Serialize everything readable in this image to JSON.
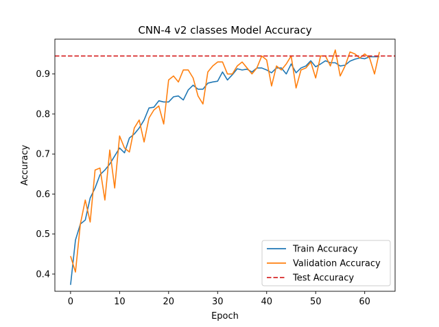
{
  "chart_data": {
    "type": "line",
    "title": "CNN-4 v2 classes Model Accuracy",
    "xlabel": "Epoch",
    "ylabel": "Accuracy",
    "xlim": [
      -3.2,
      66.2
    ],
    "ylim": [
      0.357,
      0.987
    ],
    "xticks": [
      0,
      10,
      20,
      30,
      40,
      50,
      60
    ],
    "yticks": [
      0.4,
      0.5,
      0.6,
      0.7,
      0.8,
      0.9
    ],
    "ytick_labels": [
      "0.4",
      "0.5",
      "0.6",
      "0.7",
      "0.8",
      "0.9"
    ],
    "legend_position": "lower-right",
    "series": [
      {
        "name": "Train Accuracy",
        "color": "#1f77b4",
        "style": "solid",
        "x": [
          0,
          1,
          2,
          3,
          4,
          5,
          6,
          7,
          8,
          9,
          10,
          11,
          12,
          13,
          14,
          15,
          16,
          17,
          18,
          19,
          20,
          21,
          22,
          23,
          24,
          25,
          26,
          27,
          28,
          29,
          30,
          31,
          32,
          33,
          34,
          35,
          36,
          37,
          38,
          39,
          40,
          41,
          42,
          43,
          44,
          45,
          46,
          47,
          48,
          49,
          50,
          51,
          52,
          53,
          54,
          55,
          56,
          57,
          58,
          59,
          60,
          61,
          62,
          63
        ],
        "values": [
          0.373,
          0.485,
          0.525,
          0.535,
          0.59,
          0.615,
          0.648,
          0.66,
          0.675,
          0.695,
          0.715,
          0.703,
          0.74,
          0.75,
          0.765,
          0.785,
          0.815,
          0.817,
          0.833,
          0.83,
          0.83,
          0.843,
          0.845,
          0.835,
          0.86,
          0.872,
          0.862,
          0.862,
          0.877,
          0.88,
          0.882,
          0.905,
          0.885,
          0.898,
          0.913,
          0.91,
          0.912,
          0.905,
          0.915,
          0.915,
          0.91,
          0.903,
          0.915,
          0.915,
          0.9,
          0.925,
          0.903,
          0.915,
          0.92,
          0.933,
          0.918,
          0.925,
          0.933,
          0.928,
          0.928,
          0.92,
          0.922,
          0.932,
          0.937,
          0.94,
          0.938,
          0.943,
          0.943,
          0.943
        ]
      },
      {
        "name": "Validation Accuracy",
        "color": "#ff7f0e",
        "style": "solid",
        "x": [
          0,
          1,
          2,
          3,
          4,
          5,
          6,
          7,
          8,
          9,
          10,
          11,
          12,
          13,
          14,
          15,
          16,
          17,
          18,
          19,
          20,
          21,
          22,
          23,
          24,
          25,
          26,
          27,
          28,
          29,
          30,
          31,
          32,
          33,
          34,
          35,
          36,
          37,
          38,
          39,
          40,
          41,
          42,
          43,
          44,
          45,
          46,
          47,
          48,
          49,
          50,
          51,
          52,
          53,
          54,
          55,
          56,
          57,
          58,
          59,
          60,
          61,
          62,
          63
        ],
        "values": [
          0.445,
          0.405,
          0.525,
          0.585,
          0.53,
          0.66,
          0.665,
          0.585,
          0.71,
          0.615,
          0.745,
          0.715,
          0.705,
          0.765,
          0.785,
          0.73,
          0.79,
          0.81,
          0.82,
          0.775,
          0.885,
          0.895,
          0.88,
          0.91,
          0.91,
          0.89,
          0.845,
          0.825,
          0.905,
          0.92,
          0.93,
          0.93,
          0.9,
          0.9,
          0.92,
          0.93,
          0.915,
          0.9,
          0.915,
          0.945,
          0.935,
          0.87,
          0.92,
          0.91,
          0.925,
          0.945,
          0.865,
          0.91,
          0.915,
          0.93,
          0.89,
          0.945,
          0.945,
          0.92,
          0.96,
          0.895,
          0.92,
          0.955,
          0.95,
          0.94,
          0.95,
          0.94,
          0.9,
          0.955
        ]
      },
      {
        "name": "Test Accuracy",
        "color": "#d62728",
        "style": "dashed",
        "hline": 0.945
      }
    ]
  }
}
